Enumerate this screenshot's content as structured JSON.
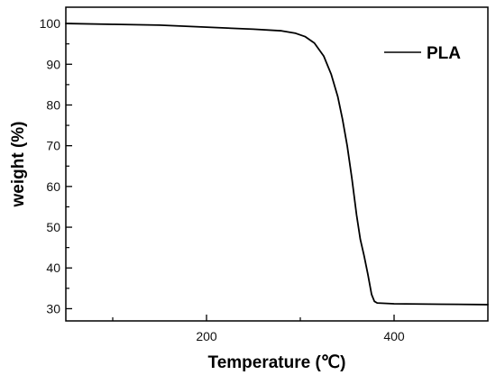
{
  "chart_data": {
    "type": "line",
    "title": "",
    "xlabel": "Temperature (℃)",
    "ylabel": "weight (%)",
    "xlim": [
      50,
      500
    ],
    "ylim": [
      27,
      104
    ],
    "xticks": [
      200,
      400
    ],
    "xminor_ticks": [
      100,
      300
    ],
    "yticks": [
      30,
      40,
      50,
      60,
      70,
      80,
      90,
      100
    ],
    "grid": false,
    "legend": {
      "placement": "top-right",
      "entries": [
        "PLA"
      ]
    },
    "series": [
      {
        "name": "PLA",
        "color": "#000000",
        "points": [
          [
            50,
            100.0
          ],
          [
            100,
            99.8
          ],
          [
            150,
            99.6
          ],
          [
            200,
            99.1
          ],
          [
            250,
            98.6
          ],
          [
            280,
            98.2
          ],
          [
            295,
            97.6
          ],
          [
            305,
            96.8
          ],
          [
            315,
            95.2
          ],
          [
            325,
            92.0
          ],
          [
            333,
            87.5
          ],
          [
            340,
            82.0
          ],
          [
            345,
            76.5
          ],
          [
            350,
            70.0
          ],
          [
            355,
            62.0
          ],
          [
            360,
            53.0
          ],
          [
            364,
            47.0
          ],
          [
            368,
            43.0
          ],
          [
            372,
            38.5
          ],
          [
            376,
            33.5
          ],
          [
            379,
            31.8
          ],
          [
            382,
            31.4
          ],
          [
            400,
            31.2
          ],
          [
            450,
            31.1
          ],
          [
            500,
            31.0
          ]
        ]
      }
    ]
  }
}
